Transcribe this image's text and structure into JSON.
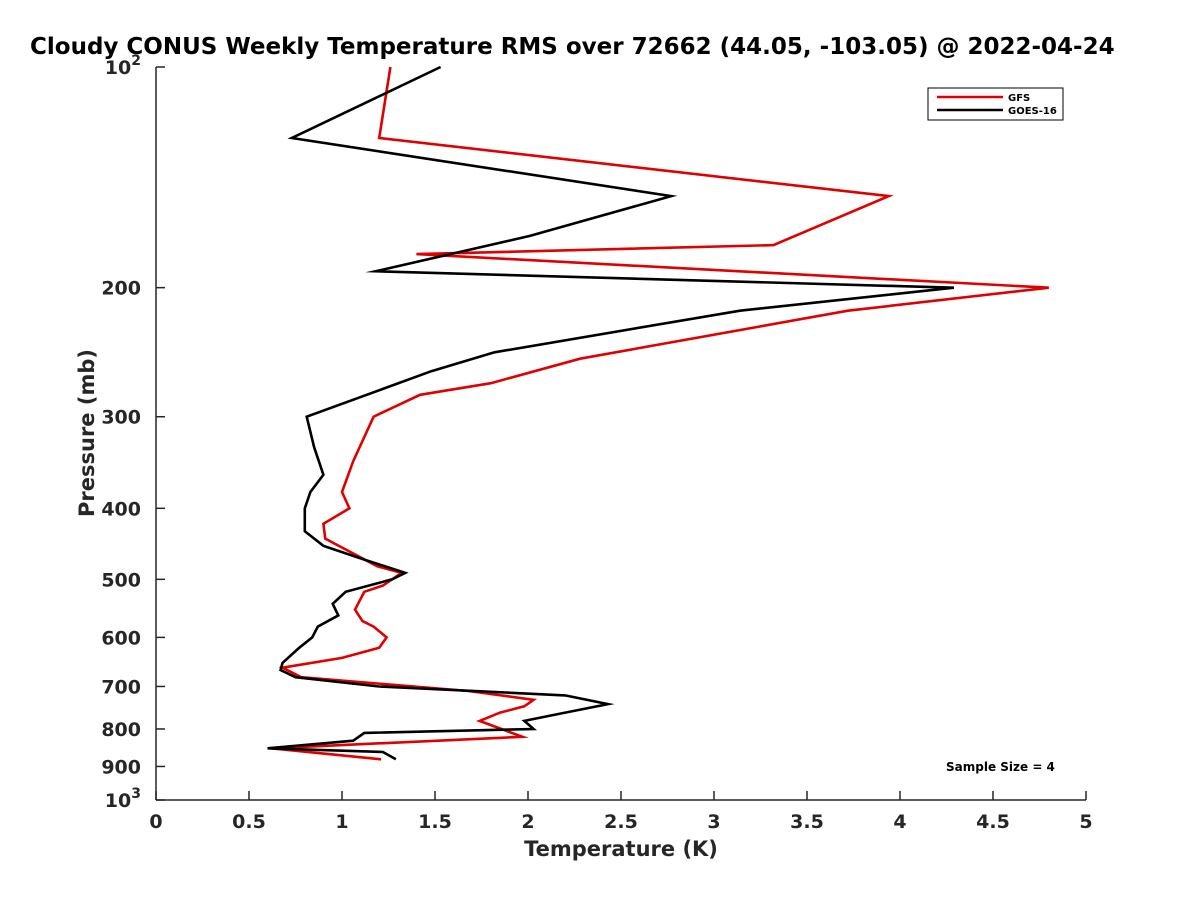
{
  "chart_data": {
    "type": "line",
    "title": "Cloudy CONUS Weekly Temperature RMS over 72662 (44.05, -103.05) @ 2022-04-24",
    "xlabel": "Temperature (K)",
    "ylabel": "Pressure (mb)",
    "xlim": [
      0,
      5
    ],
    "ylim": [
      100,
      1000
    ],
    "y_scale": "log",
    "y_direction": "reverse",
    "xticks": [
      0,
      0.5,
      1,
      1.5,
      2,
      2.5,
      3,
      3.5,
      4,
      4.5,
      5
    ],
    "xtick_labels": [
      "0",
      "0.5",
      "1",
      "1.5",
      "2",
      "2.5",
      "3",
      "3.5",
      "4",
      "4.5",
      "5"
    ],
    "yticks": [
      {
        "value": 100,
        "base": "10",
        "exp": "2"
      },
      {
        "value": 200,
        "text": "200"
      },
      {
        "value": 300,
        "text": "300"
      },
      {
        "value": 400,
        "text": "400"
      },
      {
        "value": 500,
        "text": "500"
      },
      {
        "value": 600,
        "text": "600"
      },
      {
        "value": 700,
        "text": "700"
      },
      {
        "value": 800,
        "text": "800"
      },
      {
        "value": 900,
        "text": "900"
      },
      {
        "value": 1000,
        "base": "10",
        "exp": "3"
      }
    ],
    "grid": false,
    "legend_position": "top-right",
    "annotation": "Sample Size = 4",
    "series": [
      {
        "name": "GFS",
        "color": "#e00000",
        "points": [
          [
            1.26,
            100
          ],
          [
            1.2,
            125
          ],
          [
            3.94,
            150
          ],
          [
            3.32,
            175
          ],
          [
            1.4,
            180
          ],
          [
            4.8,
            200
          ],
          [
            3.72,
            215
          ],
          [
            2.28,
            250
          ],
          [
            1.8,
            270
          ],
          [
            1.42,
            280
          ],
          [
            1.17,
            300
          ],
          [
            1.06,
            345
          ],
          [
            1.0,
            380
          ],
          [
            1.04,
            400
          ],
          [
            0.9,
            420
          ],
          [
            0.91,
            440
          ],
          [
            1.19,
            480
          ],
          [
            1.32,
            490
          ],
          [
            1.22,
            510
          ],
          [
            1.12,
            520
          ],
          [
            1.07,
            550
          ],
          [
            1.11,
            570
          ],
          [
            1.17,
            580
          ],
          [
            1.24,
            600
          ],
          [
            1.2,
            620
          ],
          [
            1.0,
            640
          ],
          [
            0.68,
            660
          ],
          [
            0.78,
            680
          ],
          [
            1.68,
            710
          ],
          [
            2.03,
            730
          ],
          [
            1.98,
            745
          ],
          [
            1.85,
            760
          ],
          [
            1.74,
            780
          ],
          [
            1.97,
            820
          ],
          [
            0.62,
            850
          ],
          [
            1.21,
            880
          ]
        ]
      },
      {
        "name": "GOES-16",
        "color": "#000000",
        "points": [
          [
            1.53,
            100
          ],
          [
            0.73,
            125
          ],
          [
            2.77,
            150
          ],
          [
            2.01,
            170
          ],
          [
            1.18,
            190
          ],
          [
            4.29,
            200
          ],
          [
            3.14,
            215
          ],
          [
            1.82,
            245
          ],
          [
            1.48,
            260
          ],
          [
            0.81,
            300
          ],
          [
            0.85,
            330
          ],
          [
            0.9,
            360
          ],
          [
            0.83,
            380
          ],
          [
            0.8,
            400
          ],
          [
            0.8,
            430
          ],
          [
            0.9,
            450
          ],
          [
            1.12,
            470
          ],
          [
            1.34,
            490
          ],
          [
            1.27,
            500
          ],
          [
            1.02,
            520
          ],
          [
            0.95,
            540
          ],
          [
            0.98,
            560
          ],
          [
            0.87,
            580
          ],
          [
            0.84,
            600
          ],
          [
            0.77,
            620
          ],
          [
            0.68,
            650
          ],
          [
            0.67,
            665
          ],
          [
            0.75,
            680
          ],
          [
            1.2,
            700
          ],
          [
            2.2,
            720
          ],
          [
            2.43,
            740
          ],
          [
            2.2,
            760
          ],
          [
            1.98,
            780
          ],
          [
            2.03,
            800
          ],
          [
            1.12,
            810
          ],
          [
            1.06,
            830
          ],
          [
            0.6,
            850
          ],
          [
            1.22,
            860
          ],
          [
            1.29,
            880
          ]
        ]
      }
    ]
  }
}
